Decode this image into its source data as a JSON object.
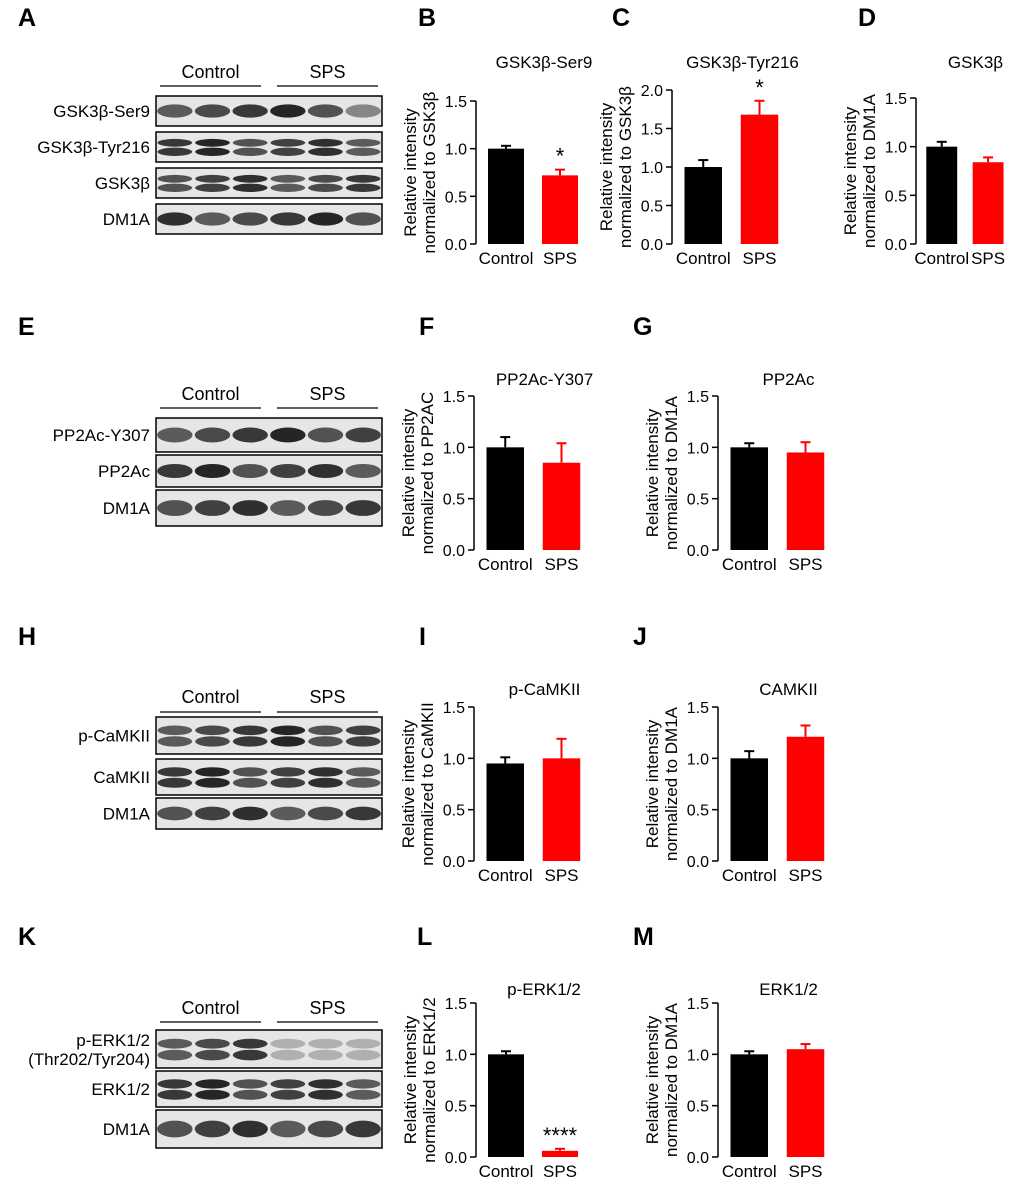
{
  "figure": {
    "group_labels": [
      "Control",
      "SPS"
    ],
    "colors": {
      "control": "#000000",
      "sps": "#ff0000",
      "ink": "#000000"
    }
  },
  "blots": [
    {
      "letter": "A",
      "groups": [
        "Control",
        "SPS"
      ],
      "rows": [
        "GSK3β-Ser9",
        "GSK3β-Tyr216",
        "GSK3β",
        "DM1A"
      ]
    },
    {
      "letter": "E",
      "groups": [
        "Control",
        "SPS"
      ],
      "rows": [
        "PP2Ac-Y307",
        "PP2Ac",
        "DM1A"
      ]
    },
    {
      "letter": "H",
      "groups": [
        "Control",
        "SPS"
      ],
      "rows": [
        "p-CaMKII",
        "CaMKII",
        "DM1A"
      ]
    },
    {
      "letter": "K",
      "groups": [
        "Control",
        "SPS"
      ],
      "rows": [
        "p-ERK1/2\n(Thr202/Tyr204)",
        "ERK1/2",
        "DM1A"
      ]
    }
  ],
  "chart_data": [
    {
      "panel": "B",
      "type": "bar",
      "title": "GSK3β-Ser9",
      "ylabel": "Relative intensity\nnormalized to GSK3β",
      "categories": [
        "Control",
        "SPS"
      ],
      "values": [
        1.0,
        0.72
      ],
      "errors": [
        0.03,
        0.06
      ],
      "ylim": [
        0,
        1.5
      ],
      "yticks": [
        "0.0",
        "0.5",
        "1.0",
        "1.5"
      ],
      "annotations": [
        "",
        "*"
      ]
    },
    {
      "panel": "C",
      "type": "bar",
      "title": "GSK3β-Tyr216",
      "ylabel": "Relative intensity\nnormalized to GSK3β",
      "categories": [
        "Control",
        "SPS"
      ],
      "values": [
        1.0,
        1.68
      ],
      "errors": [
        0.09,
        0.18
      ],
      "ylim": [
        0,
        2.0
      ],
      "yticks": [
        "0.0",
        "0.5",
        "1.0",
        "1.5",
        "2.0"
      ],
      "annotations": [
        "",
        "*"
      ]
    },
    {
      "panel": "D",
      "type": "bar",
      "title": "GSK3β",
      "ylabel": "Relative intensity\nnormalized to DM1A",
      "categories": [
        "Control",
        "SPS"
      ],
      "values": [
        1.0,
        0.84
      ],
      "errors": [
        0.05,
        0.05
      ],
      "ylim": [
        0,
        1.5
      ],
      "yticks": [
        "0.0",
        "0.5",
        "1.0",
        "1.5"
      ],
      "annotations": [
        "",
        ""
      ]
    },
    {
      "panel": "F",
      "type": "bar",
      "title": "PP2Ac-Y307",
      "ylabel": "Relative intensity\nnormalized to PP2AC",
      "categories": [
        "Control",
        "SPS"
      ],
      "values": [
        1.0,
        0.85
      ],
      "errors": [
        0.1,
        0.19
      ],
      "ylim": [
        0,
        1.5
      ],
      "yticks": [
        "0.0",
        "0.5",
        "1.0",
        "1.5"
      ],
      "annotations": [
        "",
        ""
      ]
    },
    {
      "panel": "G",
      "type": "bar",
      "title": "PP2Ac",
      "ylabel": "Relative intensity\nnormalized to DM1A",
      "categories": [
        "Control",
        "SPS"
      ],
      "values": [
        1.0,
        0.95
      ],
      "errors": [
        0.04,
        0.1
      ],
      "ylim": [
        0,
        1.5
      ],
      "yticks": [
        "0.0",
        "0.5",
        "1.0",
        "1.5"
      ],
      "annotations": [
        "",
        ""
      ]
    },
    {
      "panel": "I",
      "type": "bar",
      "title": "p-CaMKII",
      "ylabel": "Relative intensity\nnormalized to CaMKII",
      "categories": [
        "Control",
        "SPS"
      ],
      "values": [
        0.95,
        1.0
      ],
      "errors": [
        0.06,
        0.19
      ],
      "ylim": [
        0,
        1.5
      ],
      "yticks": [
        "0.0",
        "0.5",
        "1.0",
        "1.5"
      ],
      "annotations": [
        "",
        ""
      ]
    },
    {
      "panel": "J",
      "type": "bar",
      "title": "CAMKII",
      "ylabel": "Relative intensity\nnormalized to DM1A",
      "categories": [
        "Control",
        "SPS"
      ],
      "values": [
        1.0,
        1.21
      ],
      "errors": [
        0.07,
        0.11
      ],
      "ylim": [
        0,
        1.5
      ],
      "yticks": [
        "0.0",
        "0.5",
        "1.0",
        "1.5"
      ],
      "annotations": [
        "",
        ""
      ]
    },
    {
      "panel": "L",
      "type": "bar",
      "title": "p-ERK1/2",
      "ylabel": "Relative intensity\nnormalized to ERK1/2",
      "categories": [
        "Control",
        "SPS"
      ],
      "values": [
        1.0,
        0.06
      ],
      "errors": [
        0.03,
        0.02
      ],
      "ylim": [
        0,
        1.5
      ],
      "yticks": [
        "0.0",
        "0.5",
        "1.0",
        "1.5"
      ],
      "annotations": [
        "",
        "****"
      ]
    },
    {
      "panel": "M",
      "type": "bar",
      "title": "ERK1/2",
      "ylabel": "Relative intensity\nnormalized to DM1A",
      "categories": [
        "Control",
        "SPS"
      ],
      "values": [
        1.0,
        1.05
      ],
      "errors": [
        0.03,
        0.05
      ],
      "ylim": [
        0,
        1.5
      ],
      "yticks": [
        "0.0",
        "0.5",
        "1.0",
        "1.5"
      ],
      "annotations": [
        "",
        ""
      ]
    }
  ]
}
